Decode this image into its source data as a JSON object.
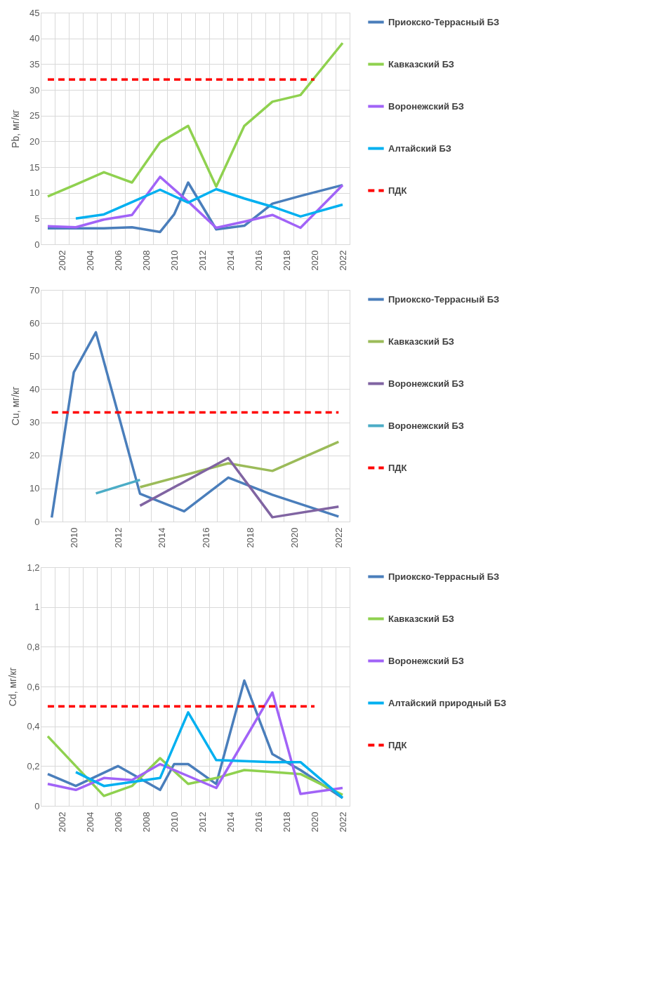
{
  "chart_data": [
    {
      "type": "line",
      "ylabel": "Pb, мг/кг",
      "categories": [
        null,
        "2002",
        null,
        "2004",
        null,
        "2006",
        null,
        "2008",
        null,
        "2010",
        null,
        "2012",
        null,
        "2014",
        null,
        "2016",
        null,
        "2018",
        null,
        "2020",
        null,
        "2022"
      ],
      "ylim": [
        0,
        45
      ],
      "yticks": [
        0,
        5,
        10,
        15,
        20,
        25,
        30,
        35,
        40,
        45
      ],
      "grid": true,
      "legend": "right",
      "line_style": "solid",
      "series": [
        {
          "name": "Приокско-Террасный БЗ",
          "color": "#4a7ebb",
          "values": [
            3.1,
            null,
            3.1,
            null,
            3.1,
            null,
            3.3,
            null,
            2.4,
            5.8,
            12,
            null,
            2.9,
            null,
            3.6,
            null,
            7.9,
            null,
            9.4,
            null,
            null,
            11.5
          ]
        },
        {
          "name": "Кавказский БЗ",
          "color": "#8fd14f",
          "values": [
            9.3,
            null,
            11.6,
            null,
            14,
            null,
            12,
            null,
            19.8,
            null,
            23,
            null,
            11.2,
            null,
            23,
            null,
            27.7,
            null,
            29,
            null,
            null,
            39.1
          ]
        },
        {
          "name": "Воронежский БЗ",
          "color": "#a163f7",
          "values": [
            3.5,
            null,
            3.3,
            null,
            4.8,
            null,
            5.7,
            null,
            13.1,
            null,
            8.3,
            null,
            3.2,
            null,
            4.4,
            null,
            5.7,
            null,
            3.2,
            null,
            null,
            11.5
          ]
        },
        {
          "name": "Алтайский БЗ",
          "color": "#00b0f0",
          "values": [
            null,
            null,
            5,
            null,
            5.8,
            null,
            8.2,
            null,
            10.6,
            null,
            8.1,
            null,
            10.7,
            null,
            8.9,
            null,
            7.3,
            null,
            5.4,
            null,
            null,
            7.7
          ]
        },
        {
          "name": "ПДК",
          "color": "#ff0000",
          "line_style": "dashed",
          "values": [
            32,
            32,
            32,
            32,
            32,
            32,
            32,
            32,
            32,
            32,
            32,
            32,
            32,
            32,
            32,
            32,
            32,
            32,
            32,
            32,
            null,
            null
          ]
        }
      ]
    },
    {
      "type": "line",
      "ylabel": "Cu, мг/кг",
      "categories": [
        null,
        "2010",
        null,
        "2012",
        null,
        "2014",
        null,
        "2016",
        null,
        "2018",
        null,
        "2020",
        null,
        "2022"
      ],
      "ylim": [
        0,
        70
      ],
      "yticks": [
        0,
        10,
        20,
        30,
        40,
        50,
        60,
        70
      ],
      "grid": true,
      "legend": "right",
      "line_style": "solid",
      "series": [
        {
          "name": "Приокско-Террасный БЗ",
          "color": "#4a7ebb",
          "values": [
            1.2,
            45.1,
            57.2,
            null,
            8.4,
            null,
            3.1,
            null,
            13.3,
            null,
            8.1,
            null,
            null,
            1.5
          ]
        },
        {
          "name": "Кавказский БЗ",
          "color": "#9bbb59",
          "values": [
            null,
            null,
            null,
            null,
            10.4,
            null,
            14,
            null,
            17.6,
            null,
            15.3,
            null,
            null,
            24.1
          ]
        },
        {
          "name": "Воронежский БЗ",
          "color": "#8064a2",
          "values": [
            null,
            null,
            null,
            null,
            4.8,
            null,
            12,
            null,
            19.2,
            null,
            1.3,
            null,
            null,
            4.5
          ]
        },
        {
          "name": "Воронежский БЗ",
          "color": "#4bacc6",
          "values": [
            null,
            null,
            8.5,
            null,
            12.6,
            null,
            null,
            null,
            null,
            null,
            null,
            null,
            null,
            null
          ]
        },
        {
          "name": "ПДК",
          "color": "#ff0000",
          "line_style": "dashed",
          "values": [
            33,
            33,
            33,
            33,
            33,
            33,
            33,
            33,
            33,
            33,
            33,
            33,
            33,
            33
          ]
        }
      ]
    },
    {
      "type": "line",
      "ylabel": "Cd, мг/кг",
      "categories": [
        null,
        "2002",
        null,
        "2004",
        null,
        "2006",
        null,
        "2008",
        null,
        "2010",
        null,
        "2012",
        null,
        "2014",
        null,
        "2016",
        null,
        "2018",
        null,
        "2020",
        null,
        "2022"
      ],
      "ylim": [
        0,
        1.2
      ],
      "yticks": [
        0,
        {
          "value": 0.2,
          "label": "0,2"
        },
        {
          "value": 0.4,
          "label": "0,4"
        },
        {
          "value": 0.6,
          "label": "0,6"
        },
        {
          "value": 0.8,
          "label": "0,8"
        },
        1,
        {
          "value": 1.2,
          "label": "1,2"
        }
      ],
      "grid": true,
      "legend": "right",
      "line_style": "solid",
      "series": [
        {
          "name": "Приокско-Террасный БЗ",
          "color": "#4a7ebb",
          "values": [
            0.16,
            null,
            0.1,
            null,
            null,
            0.2,
            null,
            null,
            0.08,
            0.21,
            0.21,
            null,
            0.11,
            null,
            0.63,
            null,
            0.26,
            null,
            0.18,
            null,
            null,
            0.04
          ]
        },
        {
          "name": "Кавказский БЗ",
          "color": "#8fd14f",
          "values": [
            0.35,
            null,
            0.2,
            null,
            0.05,
            null,
            0.1,
            null,
            0.24,
            null,
            0.11,
            null,
            0.14,
            null,
            0.18,
            null,
            0.17,
            null,
            0.16,
            null,
            null,
            0.055
          ]
        },
        {
          "name": "Воронежский БЗ",
          "color": "#a163f7",
          "values": [
            0.11,
            null,
            0.08,
            null,
            0.14,
            null,
            0.13,
            null,
            0.21,
            null,
            0.15,
            null,
            0.09,
            null,
            0.33,
            null,
            0.57,
            null,
            0.06,
            null,
            null,
            0.09
          ]
        },
        {
          "name": "Алтайский природный БЗ",
          "color": "#00b0f0",
          "values": [
            null,
            null,
            0.17,
            null,
            0.1,
            null,
            0.12,
            null,
            0.14,
            null,
            0.47,
            null,
            0.23,
            null,
            0.225,
            null,
            0.22,
            null,
            0.22,
            null,
            null,
            0.04
          ]
        },
        {
          "name": "ПДК",
          "color": "#ff0000",
          "line_style": "dashed",
          "values": [
            0.5,
            0.5,
            0.5,
            0.5,
            0.5,
            0.5,
            0.5,
            0.5,
            0.5,
            0.5,
            0.5,
            0.5,
            0.5,
            0.5,
            0.5,
            0.5,
            0.5,
            0.5,
            0.5,
            0.5,
            null,
            null
          ]
        }
      ]
    }
  ]
}
